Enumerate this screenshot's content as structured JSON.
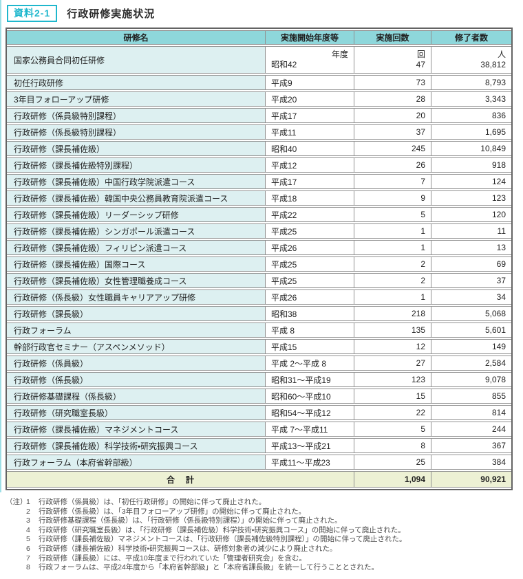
{
  "page": {
    "badge": "資料2-1",
    "title": "行政研修実施状況"
  },
  "table": {
    "headers": [
      "研修名",
      "実施開始年度等",
      "実施回数",
      "修了者数"
    ],
    "units": {
      "year": "年度",
      "count": "回",
      "people": "人"
    },
    "rows": [
      {
        "name": "国家公務員合同初任研修",
        "start": "昭和42",
        "count": "47",
        "completed": "38,812"
      },
      {
        "name": "初任行政研修",
        "start": "平成9",
        "count": "73",
        "completed": "8,793"
      },
      {
        "name": "3年目フォローアップ研修",
        "start": "平成20",
        "count": "28",
        "completed": "3,343"
      },
      {
        "name": "行政研修（係員級特別課程）",
        "start": "平成17",
        "count": "20",
        "completed": "836"
      },
      {
        "name": "行政研修（係長級特別課程）",
        "start": "平成11",
        "count": "37",
        "completed": "1,695"
      },
      {
        "name": "行政研修（課長補佐級）",
        "start": "昭和40",
        "count": "245",
        "completed": "10,849"
      },
      {
        "name": "行政研修（課長補佐級特別課程）",
        "start": "平成12",
        "count": "26",
        "completed": "918"
      },
      {
        "name": "行政研修（課長補佐級）中国行政学院派遣コース",
        "start": "平成17",
        "count": "7",
        "completed": "124"
      },
      {
        "name": "行政研修（課長補佐級）韓国中央公務員教育院派遣コース",
        "start": "平成18",
        "count": "9",
        "completed": "123"
      },
      {
        "name": "行政研修（課長補佐級）リーダーシップ研修",
        "start": "平成22",
        "count": "5",
        "completed": "120"
      },
      {
        "name": "行政研修（課長補佐級）シンガポール派遣コース",
        "start": "平成25",
        "count": "1",
        "completed": "11"
      },
      {
        "name": "行政研修（課長補佐級）フィリピン派遣コース",
        "start": "平成26",
        "count": "1",
        "completed": "13"
      },
      {
        "name": "行政研修（課長補佐級）国際コース",
        "start": "平成25",
        "count": "2",
        "completed": "69"
      },
      {
        "name": "行政研修（課長補佐級）女性管理職養成コース",
        "start": "平成25",
        "count": "2",
        "completed": "37"
      },
      {
        "name": "行政研修（係長級）女性職員キャリアアップ研修",
        "start": "平成26",
        "count": "1",
        "completed": "34"
      },
      {
        "name": "行政研修（課長級）",
        "start": "昭和38",
        "count": "218",
        "completed": "5,068"
      },
      {
        "name": "行政フォーラム",
        "start": "平成 8",
        "count": "135",
        "completed": "5,601"
      },
      {
        "name": "幹部行政官セミナー（アスペンメソッド）",
        "start": "平成15",
        "count": "12",
        "completed": "149"
      },
      {
        "name": "行政研修（係員級）",
        "start": "平成 2～平成 8",
        "count": "27",
        "completed": "2,584"
      },
      {
        "name": "行政研修（係長級）",
        "start": "昭和31～平成19",
        "count": "123",
        "completed": "9,078"
      },
      {
        "name": "行政研修基礎課程（係長級）",
        "start": "昭和60～平成10",
        "count": "15",
        "completed": "855"
      },
      {
        "name": "行政研修（研究職室長級）",
        "start": "昭和54～平成12",
        "count": "22",
        "completed": "814"
      },
      {
        "name": "行政研修（課長補佐級）マネジメントコース",
        "start": "平成 7～平成11",
        "count": "5",
        "completed": "244"
      },
      {
        "name": "行政研修（課長補佐級）科学技術・研究振興コース",
        "start": "平成13～平成21",
        "count": "8",
        "completed": "367"
      },
      {
        "name": "行政フォーラム（本府省幹部級）",
        "start": "平成11～平成23",
        "count": "25",
        "completed": "384"
      }
    ],
    "total": {
      "label": "合　計",
      "count": "1,094",
      "completed": "90,921"
    }
  },
  "notes": {
    "label": "（注）",
    "items": [
      {
        "num": "1",
        "text": "行政研修（係員級）は、「初任行政研修」の開始に伴って廃止された。"
      },
      {
        "num": "2",
        "text": "行政研修（係長級）は、「3年目フォローアップ研修」の開始に伴って廃止された。"
      },
      {
        "num": "3",
        "text": "行政研修基礎課程（係長級）は、「行政研修（係長級特別課程）」の開始に伴って廃止された。"
      },
      {
        "num": "4",
        "text": "行政研修（研究職室長級）は、「行政研修（課長補佐級）科学技術・研究振興コース」の開始に伴って廃止された。"
      },
      {
        "num": "5",
        "text": "行政研修（課長補佐級）マネジメントコースは、「行政研修（課長補佐級特別課程）」の開始に伴って廃止された。"
      },
      {
        "num": "6",
        "text": "行政研修（課長補佐級）科学技術・研究振興コースは、研修対象者の減少により廃止された。"
      },
      {
        "num": "7",
        "text": "行政研修（課長級）には、平成10年度まで行われていた「管理者研究会」を含む。"
      },
      {
        "num": "8",
        "text": "行政フォーラムは、平成24年度から「本府省幹部級」と「本府省課長級」を統一して行うこととされた。"
      }
    ]
  },
  "colors": {
    "accent": "#1fb7cd",
    "header_bg": "#8ed7db",
    "name_cell_bg": "#ddf0f1",
    "total_row_bg": "#edf1d4",
    "border": "#8f8f8f"
  }
}
